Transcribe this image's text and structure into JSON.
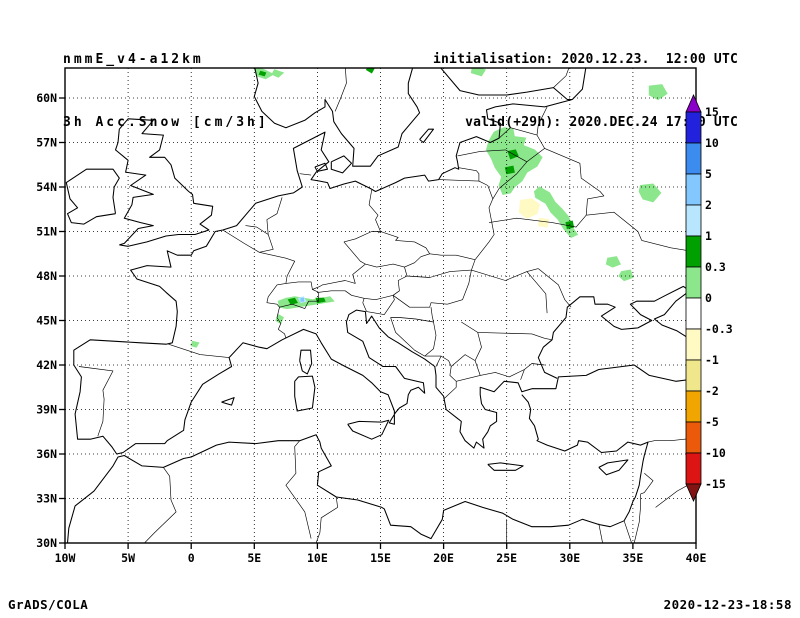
{
  "header": {
    "model": "nmmE_v4-a12km",
    "field": "3h Acc.Snow [cm/3h]",
    "init_line": "initialisation: 2020.12.23.  12:00 UTC",
    "valid_line": "valid(+29h): 2020.DEC.24 17:00 UTC"
  },
  "footer": {
    "credit": "GrADS/COLA",
    "timestamp": "2020-12-23-18:58"
  },
  "chart_data": {
    "type": "heatmap",
    "title": "3h Acc.Snow [cm/3h]",
    "model_run": "nmmE_v4-a12km",
    "initialisation": "2020.12.23. 12:00 UTC",
    "valid": "(+29h) 2020.DEC.24 17:00 UTC",
    "x_axis": {
      "ticks": [
        "10W",
        "5W",
        "0",
        "5E",
        "10E",
        "15E",
        "20E",
        "25E",
        "30E",
        "35E",
        "40E"
      ],
      "range_deg_lon": [
        -10,
        40
      ]
    },
    "y_axis": {
      "ticks": [
        "30N",
        "33N",
        "36N",
        "39N",
        "42N",
        "45N",
        "48N",
        "51N",
        "54N",
        "57N",
        "60N"
      ],
      "range_deg_lat": [
        30,
        62
      ]
    },
    "grid": "dotted",
    "map": "Europe / Mediterranean coastlines with country borders",
    "colorbar": {
      "position": "right",
      "orientation": "vertical",
      "unit": "cm/3h",
      "levels": [
        15,
        10,
        5,
        2,
        1,
        0.3,
        0,
        -0.3,
        -1,
        -2,
        -5,
        -10,
        -15
      ],
      "colors_top_to_bottom": [
        "#8b00c8",
        "#2222dc",
        "#3c8cf0",
        "#82c8ff",
        "#b9e6ff",
        "#00a000",
        "#8ce68c",
        "#ffffff",
        "#fff9c3",
        "#f0e68c",
        "#f0a500",
        "#eb5a0a",
        "#dc1414",
        "#821414"
      ],
      "note": "top triangle = >15, bottom triangle = <-15"
    },
    "shaded_regions": [
      {
        "area": "Baltic states (Latvia/Lithuania) into Belarus",
        "approx_lon": "23E-28E",
        "approx_lat": "53N-58N",
        "value_cm": "0-0.3, local spots 0.3-1"
      },
      {
        "area": "Band trailing SE toward Kyiv region",
        "approx_lon": "27E-31E",
        "approx_lat": "50N-54N",
        "value_cm": "0-0.3"
      },
      {
        "area": "Alps (Switzerland / N Italy / W Austria)",
        "approx_lon": "7E-11E",
        "approx_lat": "45N-47N",
        "value_cm": "0-1, spots 1-5"
      },
      {
        "area": "S Norway at top edge",
        "approx_lon": "5E-7E",
        "approx_lat": "61N-62N",
        "value_cm": "0-0.3"
      },
      {
        "area": "SW Finland at top edge",
        "approx_lon": "22E-23E",
        "approx_lat": "61N-62N",
        "value_cm": "0-0.3"
      },
      {
        "area": "NW Russia (upper-right blob)",
        "approx_lon": "36E-38E",
        "approx_lat": "60N-61N",
        "value_cm": "0-0.3"
      },
      {
        "area": "W Russia (south of Moscow)",
        "approx_lon": "35E-37E",
        "approx_lat": "53N-54N",
        "value_cm": "0-0.3"
      },
      {
        "area": "S Belarus pale-yellow patches",
        "approx_lon": "26E-28E",
        "approx_lat": "51N-53N",
        "value_cm": "-0.3 to -1"
      },
      {
        "area": "Central Ukraine specks",
        "approx_lon": "33E-35E",
        "approx_lat": "47N-49N",
        "value_cm": "0-0.3"
      },
      {
        "area": "SW France speck",
        "approx_lon": "0E",
        "approx_lat": "43N",
        "value_cm": "0-0.3"
      }
    ]
  }
}
